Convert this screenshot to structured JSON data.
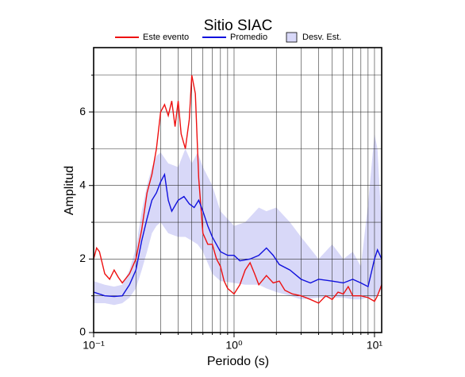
{
  "chart_data": {
    "type": "line",
    "title": "Sitio SIAC",
    "xlabel": "Periodo (s)",
    "ylabel": "Amplitud",
    "xscale": "log",
    "grid": true,
    "xlim": [
      0.1,
      11.25
    ],
    "ylim": [
      0,
      7.75
    ],
    "xticks": [
      {
        "value": 0.1,
        "label": "10⁻¹"
      },
      {
        "value": 1,
        "label": "10⁰"
      },
      {
        "value": 10,
        "label": "10¹"
      }
    ],
    "xminor": [
      0.2,
      0.3,
      0.4,
      0.5,
      0.6,
      0.7,
      0.8,
      0.9,
      2,
      3,
      4,
      5,
      6,
      7,
      8,
      9
    ],
    "yticks": [
      0,
      2,
      4,
      6
    ],
    "yminor": [
      1,
      3,
      5,
      7
    ],
    "series": [
      {
        "name": "Este evento",
        "color": "#ee1111",
        "x": [
          0.1,
          0.105,
          0.11,
          0.12,
          0.13,
          0.14,
          0.15,
          0.16,
          0.18,
          0.2,
          0.22,
          0.24,
          0.26,
          0.28,
          0.3,
          0.32,
          0.34,
          0.36,
          0.38,
          0.4,
          0.42,
          0.45,
          0.48,
          0.5,
          0.53,
          0.56,
          0.6,
          0.65,
          0.7,
          0.75,
          0.8,
          0.85,
          0.9,
          1.0,
          1.1,
          1.2,
          1.3,
          1.4,
          1.5,
          1.7,
          1.9,
          2.1,
          2.3,
          2.6,
          3.0,
          3.5,
          4.0,
          4.5,
          5.0,
          5.5,
          6.0,
          6.5,
          7.0,
          8.0,
          9.0,
          10.0,
          10.5,
          11.25
        ],
        "values": [
          2.0,
          2.3,
          2.2,
          1.6,
          1.45,
          1.7,
          1.5,
          1.35,
          1.6,
          2.0,
          2.8,
          3.8,
          4.3,
          5.0,
          6.0,
          6.2,
          5.9,
          6.3,
          5.6,
          6.3,
          5.4,
          5.0,
          5.8,
          7.0,
          6.5,
          4.2,
          2.7,
          2.4,
          2.4,
          2.0,
          1.8,
          1.4,
          1.2,
          1.05,
          1.3,
          1.7,
          1.9,
          1.6,
          1.3,
          1.55,
          1.35,
          1.4,
          1.15,
          1.05,
          1.0,
          0.9,
          0.8,
          1.0,
          0.9,
          1.1,
          1.05,
          1.25,
          1.0,
          1.0,
          0.95,
          0.85,
          1.0,
          1.3
        ]
      },
      {
        "name": "Promedio",
        "color": "#1111dd",
        "x": [
          0.1,
          0.12,
          0.14,
          0.16,
          0.18,
          0.2,
          0.22,
          0.24,
          0.26,
          0.28,
          0.3,
          0.32,
          0.34,
          0.36,
          0.4,
          0.44,
          0.48,
          0.52,
          0.56,
          0.6,
          0.65,
          0.7,
          0.8,
          0.9,
          1.0,
          1.1,
          1.3,
          1.5,
          1.7,
          1.9,
          2.1,
          2.5,
          3.0,
          3.5,
          4.0,
          5.0,
          6.0,
          7.0,
          8.0,
          9.0,
          10.0,
          10.5,
          11.25
        ],
        "values": [
          1.1,
          1.0,
          0.98,
          1.0,
          1.3,
          1.7,
          2.5,
          3.1,
          3.6,
          3.8,
          4.1,
          4.3,
          3.6,
          3.3,
          3.6,
          3.7,
          3.5,
          3.4,
          3.6,
          3.3,
          2.9,
          2.6,
          2.2,
          2.1,
          2.1,
          1.95,
          2.0,
          2.1,
          2.3,
          2.1,
          1.85,
          1.7,
          1.45,
          1.35,
          1.45,
          1.4,
          1.35,
          1.45,
          1.35,
          1.25,
          2.0,
          2.25,
          2.0
        ]
      }
    ],
    "band": {
      "name": "Desv. Est.",
      "color": "#d8d8f8",
      "x": [
        0.1,
        0.12,
        0.14,
        0.16,
        0.18,
        0.2,
        0.22,
        0.24,
        0.26,
        0.28,
        0.3,
        0.34,
        0.4,
        0.45,
        0.5,
        0.55,
        0.6,
        0.7,
        0.8,
        1.0,
        1.2,
        1.5,
        1.7,
        2.0,
        2.5,
        3.0,
        4.0,
        5.0,
        6.0,
        7.0,
        8.0,
        9.0,
        10.0,
        10.5,
        11.25
      ],
      "upper": [
        1.4,
        1.3,
        1.25,
        1.3,
        1.7,
        2.3,
        3.3,
        4.0,
        4.5,
        4.8,
        4.9,
        4.6,
        4.5,
        5.0,
        4.6,
        4.9,
        4.5,
        4.0,
        3.3,
        2.9,
        3.0,
        3.4,
        3.3,
        3.4,
        3.0,
        2.6,
        2.0,
        2.4,
        2.0,
        2.2,
        1.8,
        3.5,
        5.4,
        5.0,
        2.9
      ],
      "lower": [
        0.8,
        0.8,
        0.75,
        0.8,
        0.95,
        1.2,
        1.7,
        2.2,
        2.7,
        2.9,
        3.0,
        2.7,
        2.6,
        2.6,
        2.5,
        2.4,
        2.2,
        1.6,
        1.4,
        1.35,
        1.3,
        1.3,
        1.2,
        1.1,
        1.0,
        0.9,
        0.95,
        0.95,
        0.95,
        0.9,
        0.9,
        0.95,
        0.95,
        1.0,
        1.2
      ]
    }
  }
}
